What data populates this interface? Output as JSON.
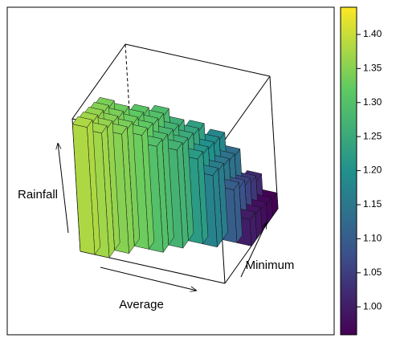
{
  "chart_data": {
    "type": "surface3d",
    "xlabel": "Average",
    "ylabel": "Minimum",
    "zlabel": "Rainfall",
    "zlim": [
      0.9,
      1.4
    ],
    "z": [
      [
        1.38,
        1.37,
        1.36,
        1.35,
        1.34,
        null,
        null,
        null,
        null,
        null
      ],
      [
        1.37,
        1.36,
        1.35,
        1.34,
        1.33,
        null,
        null,
        null,
        null,
        null
      ],
      [
        null,
        1.35,
        1.34,
        1.33,
        1.32,
        1.31,
        null,
        null,
        null,
        null
      ],
      [
        null,
        null,
        1.33,
        1.32,
        1.31,
        1.3,
        1.29,
        null,
        null,
        null
      ],
      [
        null,
        null,
        1.3,
        1.29,
        1.28,
        1.27,
        1.26,
        null,
        null,
        null
      ],
      [
        null,
        null,
        null,
        1.27,
        1.26,
        1.25,
        1.24,
        1.23,
        null,
        null
      ],
      [
        null,
        null,
        null,
        null,
        1.22,
        1.21,
        1.2,
        1.19,
        1.18,
        null
      ],
      [
        null,
        null,
        null,
        null,
        1.17,
        1.16,
        1.15,
        1.14,
        1.13,
        null
      ],
      [
        null,
        null,
        null,
        null,
        null,
        1.1,
        1.08,
        1.06,
        1.04,
        1.02
      ],
      [
        null,
        null,
        null,
        null,
        null,
        1.0,
        0.99,
        0.98,
        0.97,
        0.96
      ]
    ],
    "colorbar": {
      "clim": [
        0.959,
        1.44
      ],
      "ticks": [
        {
          "value": 1.0,
          "label": "1.00"
        },
        {
          "value": 1.05,
          "label": "1.05"
        },
        {
          "value": 1.1,
          "label": "1.10"
        },
        {
          "value": 1.15,
          "label": "1.15"
        },
        {
          "value": 1.2,
          "label": "1.20"
        },
        {
          "value": 1.25,
          "label": "1.25"
        },
        {
          "value": 1.3,
          "label": "1.30"
        },
        {
          "value": 1.35,
          "label": "1.35"
        },
        {
          "value": 1.4,
          "label": "1.40"
        }
      ]
    }
  }
}
